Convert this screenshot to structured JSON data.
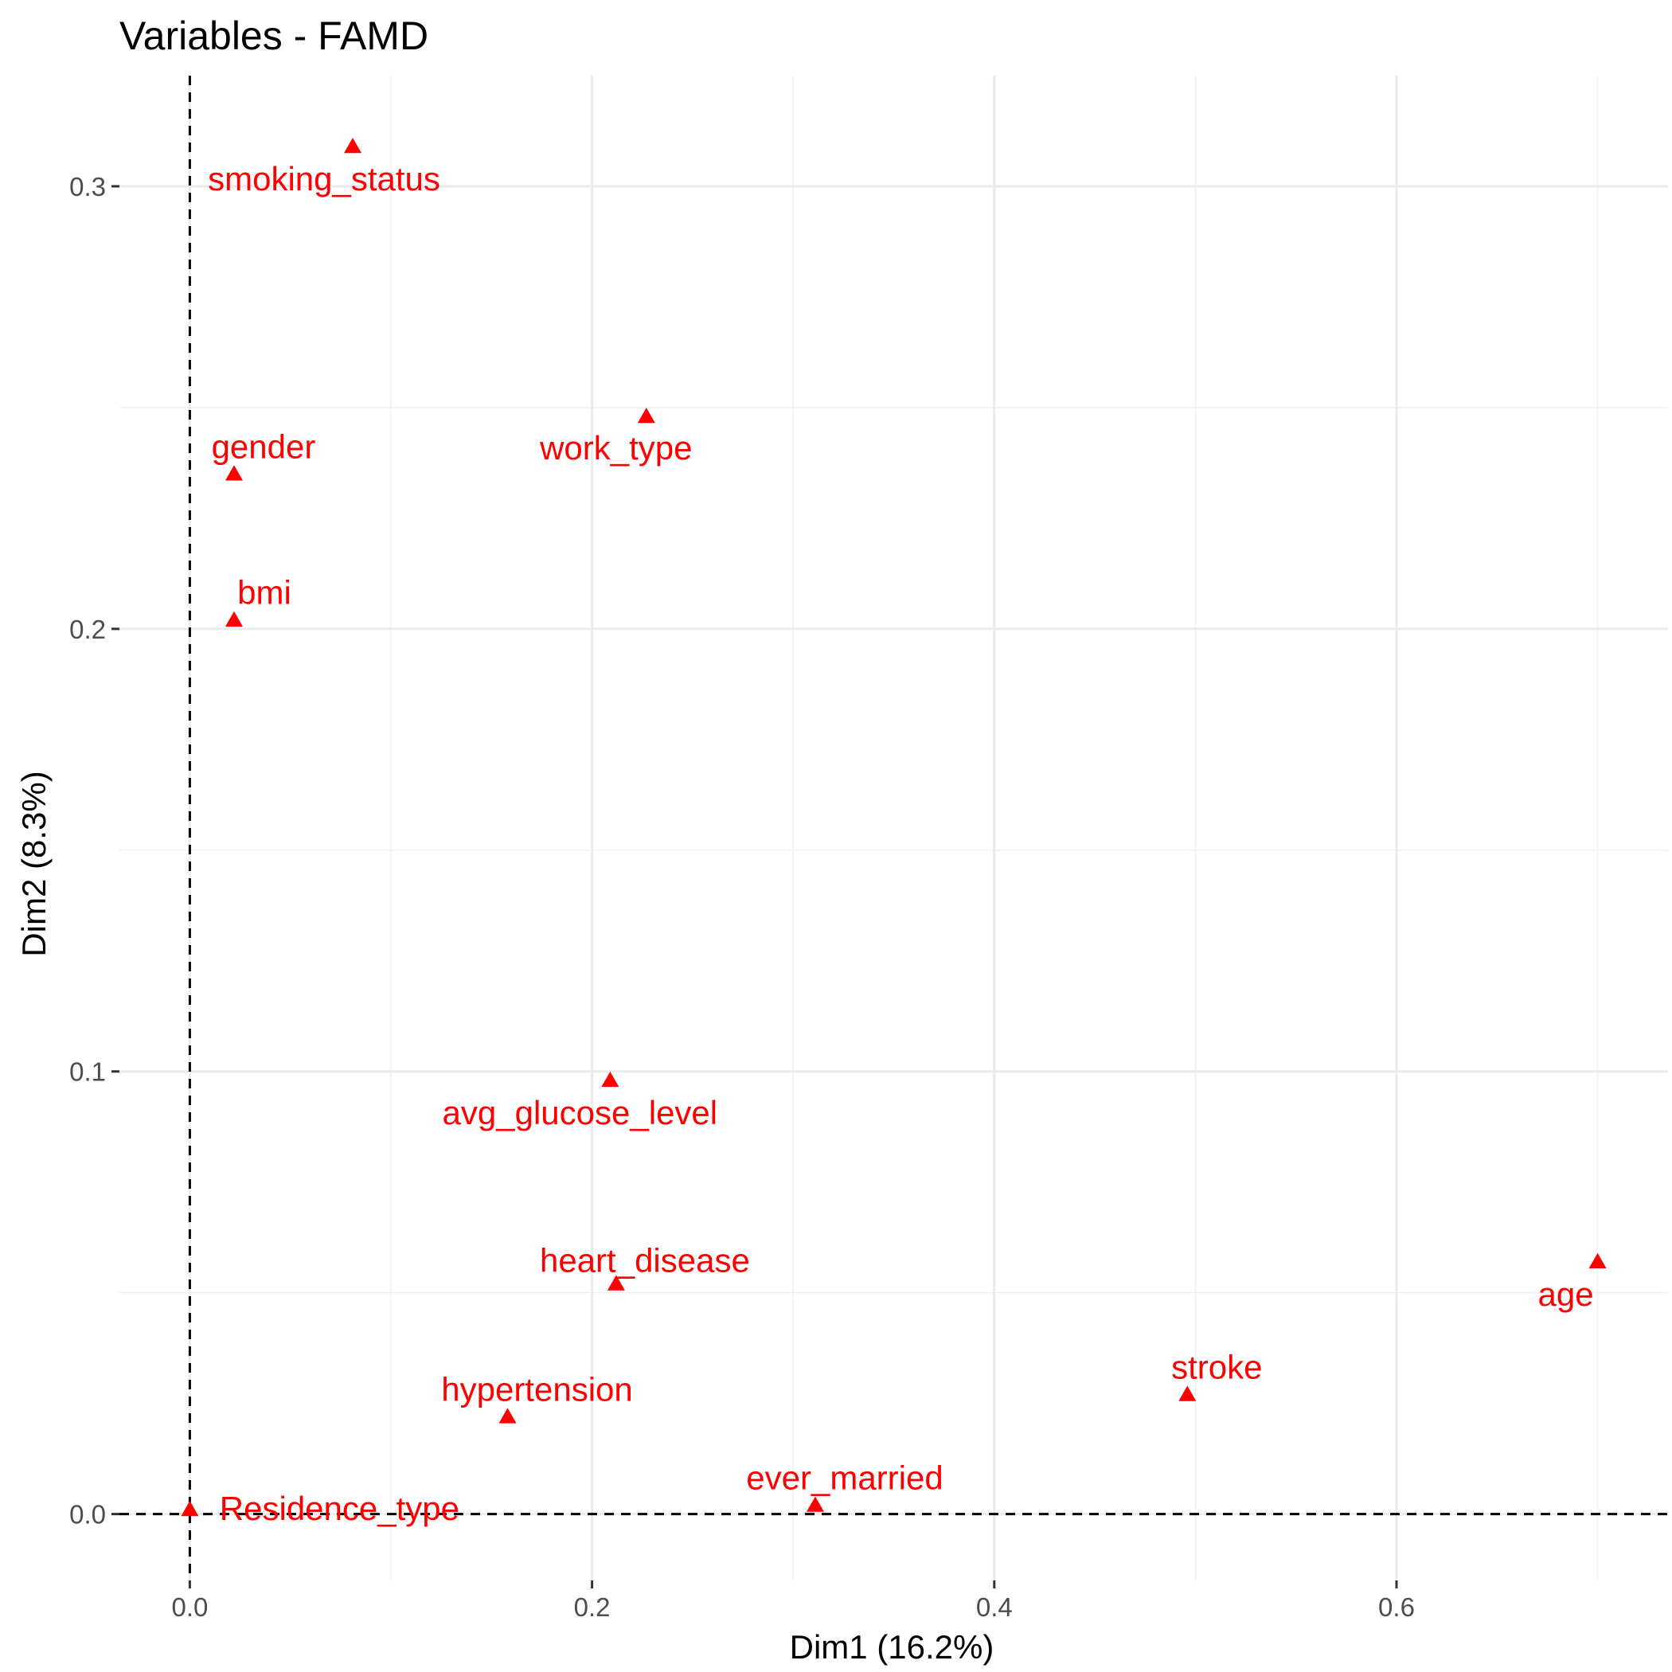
{
  "chart_data": {
    "type": "scatter",
    "title": "Variables - FAMD",
    "xlabel": "Dim1 (16.2%)",
    "ylabel": "Dim2 (8.3%)",
    "xlim": [
      -0.035,
      0.735
    ],
    "ylim": [
      -0.015,
      0.325
    ],
    "xticks": [
      0.0,
      0.2,
      0.4,
      0.6
    ],
    "xtick_labels": [
      "0.0",
      "0.2",
      "0.4",
      "0.6"
    ],
    "yticks": [
      0.0,
      0.1,
      0.2,
      0.3
    ],
    "ytick_labels": [
      "0.0",
      "0.1",
      "0.2",
      "0.3"
    ],
    "grid": true,
    "reference_lines": {
      "x": 0,
      "y": 0,
      "style": "dashed"
    },
    "marker": "triangle",
    "color": "#ff0000",
    "points": [
      {
        "label": "smoking_status",
        "x": 0.081,
        "y": 0.309
      },
      {
        "label": "work_type",
        "x": 0.227,
        "y": 0.248
      },
      {
        "label": "gender",
        "x": 0.022,
        "y": 0.235
      },
      {
        "label": "bmi",
        "x": 0.022,
        "y": 0.202
      },
      {
        "label": "avg_glucose_level",
        "x": 0.209,
        "y": 0.098
      },
      {
        "label": "heart_disease",
        "x": 0.212,
        "y": 0.052
      },
      {
        "label": "age",
        "x": 0.7,
        "y": 0.057
      },
      {
        "label": "stroke",
        "x": 0.496,
        "y": 0.027
      },
      {
        "label": "hypertension",
        "x": 0.158,
        "y": 0.022
      },
      {
        "label": "ever_married",
        "x": 0.311,
        "y": 0.002
      },
      {
        "label": "Residence_type",
        "x": 0.0,
        "y": 0.001
      }
    ]
  }
}
